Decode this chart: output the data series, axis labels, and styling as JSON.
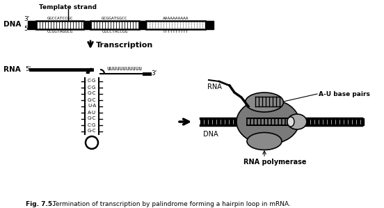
{
  "title_bold": "Fig. 7.5.",
  "title_rest": " Termination of transcription by palindrome forming a hairpin loop in mRNA.",
  "template_strand_label": "Template strand",
  "dna_label": "DNA",
  "rna_label": "RNA",
  "transcription_label": "Transcription",
  "dna_top_seq1": "GGCCATCCGC",
  "dna_top_seq2": "GCGGATGGCC",
  "dna_top_seq3": "AAAAAAAAAA",
  "dna_bot_seq1": "CCGGTAGGCG",
  "dna_bot_seq2": "CGCCTACCGG",
  "dna_bot_seq3": "TTTTTTTTTT",
  "rna_uuuu": "uuuuuuuuuuu",
  "hairpin_pairs": [
    "C·G",
    "C·G",
    "G·C",
    "G·C",
    "U·A",
    "A·U",
    "G·C",
    "C·G",
    "G·C"
  ],
  "rna_polymerase_label": "RNA polymerase",
  "au_base_pairs_label": "A-U base pairs",
  "rna_right_label": "RNA",
  "dna_right_label": "DNA",
  "bg_color": "#ffffff",
  "text_color": "#000000",
  "gray_color": "#888888",
  "gray_dark": "#555555"
}
